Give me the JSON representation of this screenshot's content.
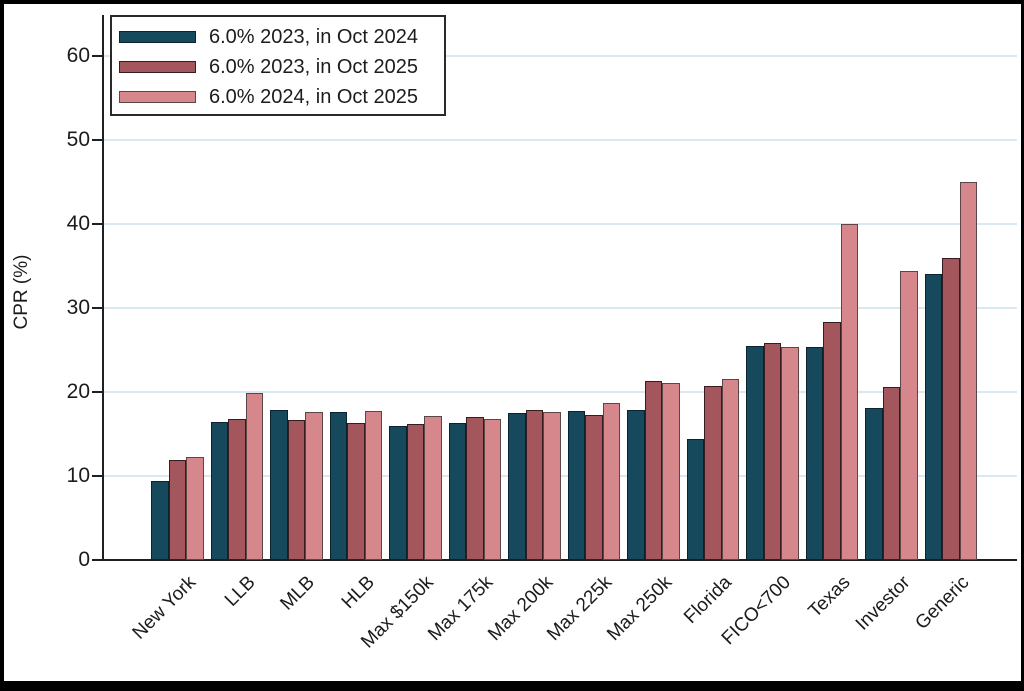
{
  "chart_data": {
    "type": "bar",
    "title": "",
    "xlabel": "",
    "ylabel": "CPR (%)",
    "ylim": [
      0,
      60
    ],
    "yticks": [
      0,
      10,
      20,
      30,
      40,
      50,
      60
    ],
    "grid": "horizontal",
    "legend_position": "top-left",
    "categories": [
      "New York",
      "LLB",
      "MLB",
      "HLB",
      "Max $150k",
      "Max 175k",
      "Max 200k",
      "Max 225k",
      "Max 250k",
      "Florida",
      "FICO<700",
      "Texas",
      "Investor",
      "Generic"
    ],
    "series": [
      {
        "name": "6.0% 2023, in Oct 2024",
        "color": "#17495C",
        "border_color": "#0B2230",
        "values": [
          9.4,
          16.4,
          17.8,
          17.6,
          16.0,
          16.3,
          17.5,
          17.7,
          17.9,
          14.4,
          25.5,
          25.3,
          18.1,
          34.0
        ]
      },
      {
        "name": "6.0% 2023, in Oct 2025",
        "color": "#A3565C",
        "border_color": "#341C20",
        "values": [
          11.9,
          16.8,
          16.7,
          16.3,
          16.2,
          17.0,
          17.9,
          17.3,
          21.3,
          20.7,
          25.8,
          28.3,
          20.6,
          36.0
        ]
      },
      {
        "name": "6.0% 2024, in Oct 2025",
        "color": "#D5878C",
        "border_color": "#5A4547",
        "values": [
          12.3,
          19.9,
          17.6,
          17.7,
          17.2,
          16.8,
          17.6,
          18.7,
          21.1,
          21.5,
          25.3,
          40.0,
          34.4,
          45.0
        ]
      }
    ]
  },
  "colors": {
    "gridline": "#D8E9F3",
    "axis": "#202020",
    "frame": "#000000",
    "background": "#FFFFFF"
  }
}
